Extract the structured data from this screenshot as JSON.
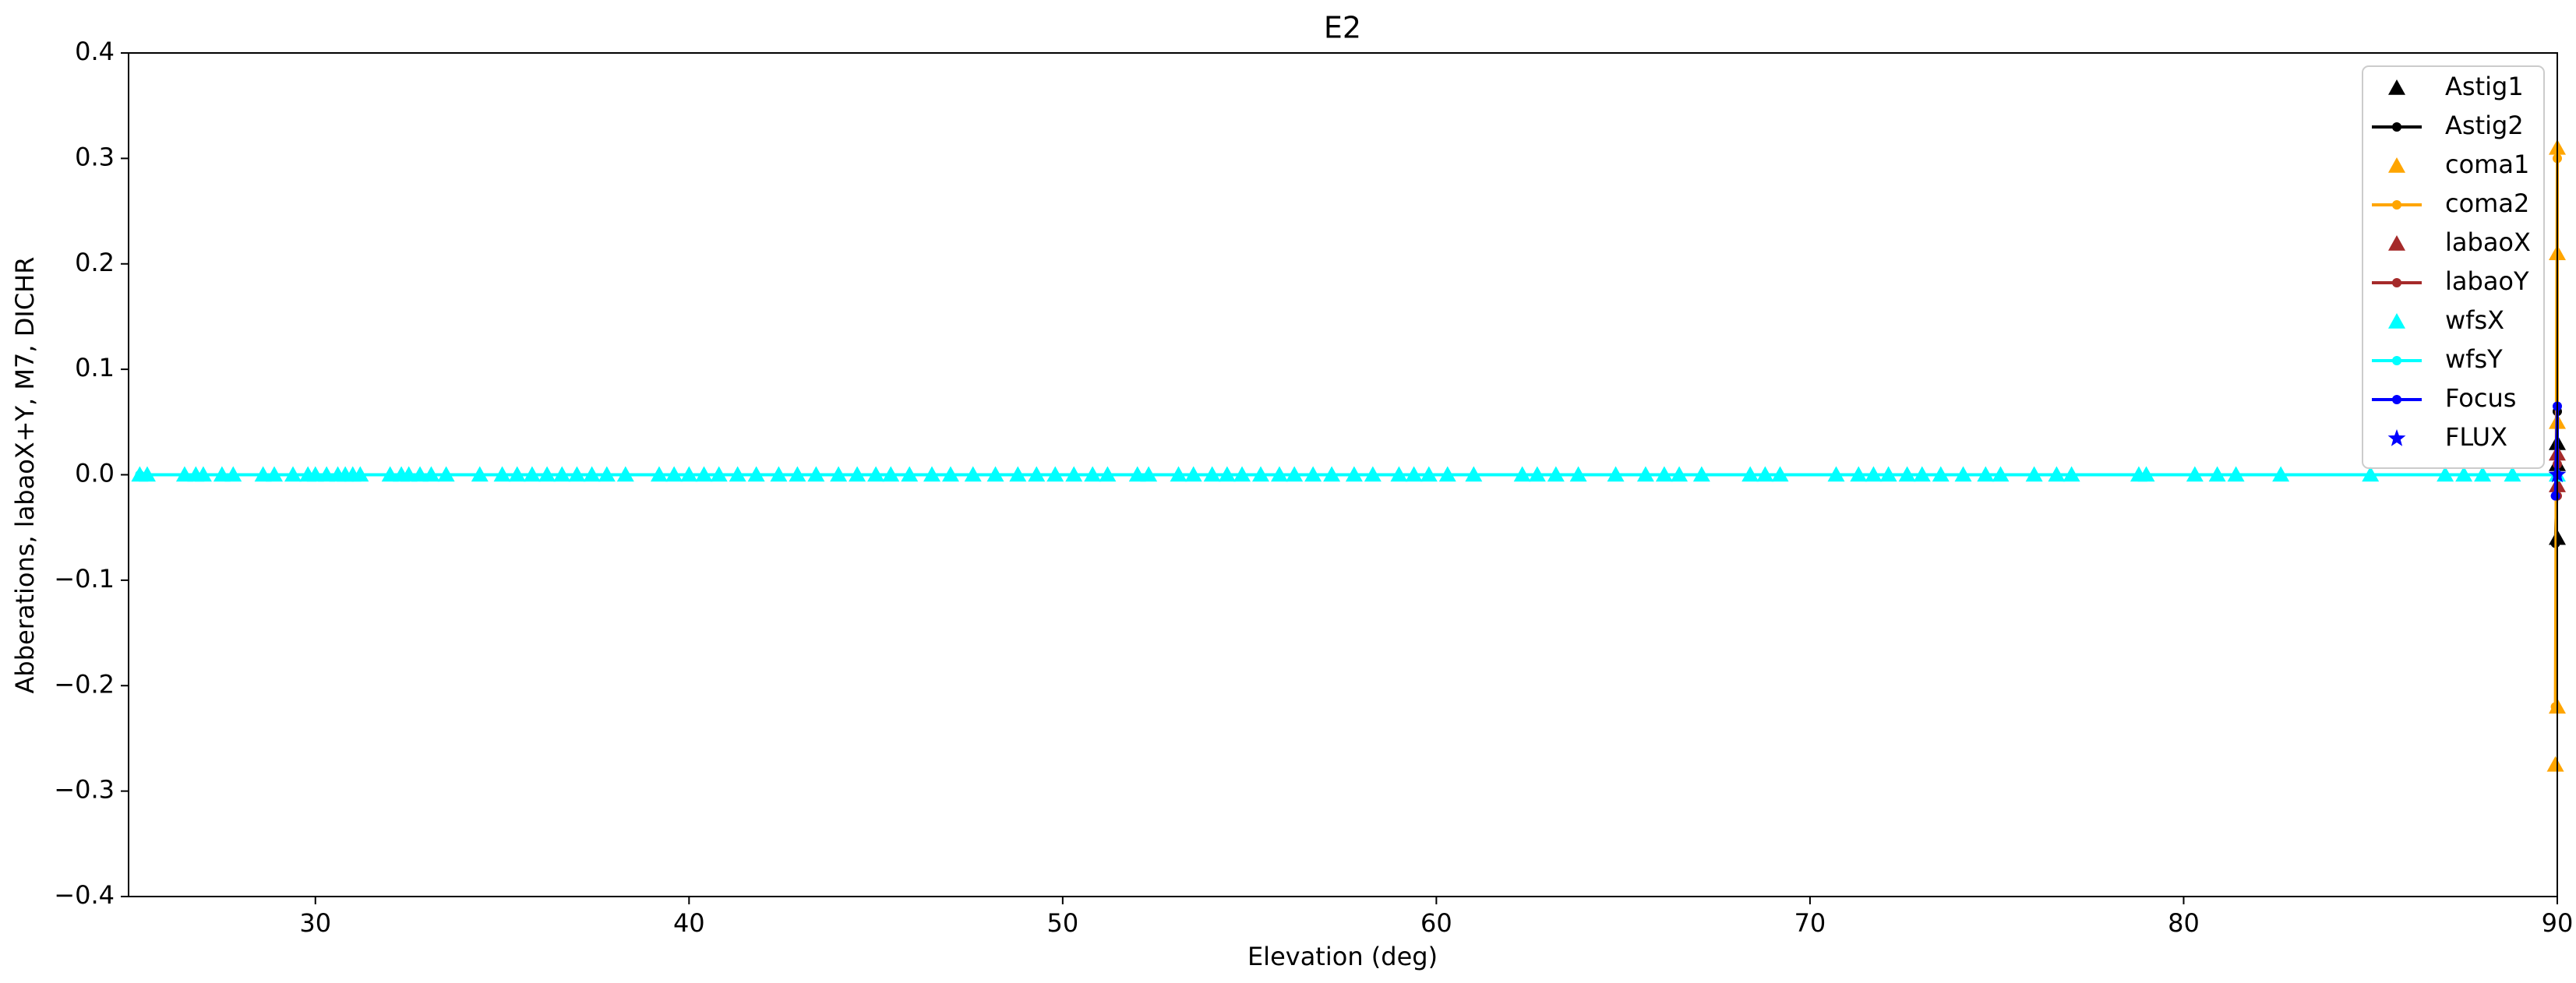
{
  "chart_data": {
    "type": "scatter",
    "title": "E2",
    "xlabel": "Elevation (deg)",
    "ylabel": "Abberations, labaoX+Y, M7, DICHR",
    "xlim": [
      25,
      90
    ],
    "ylim": [
      -0.4,
      0.4
    ],
    "xticks": [
      30,
      40,
      50,
      60,
      70,
      80,
      90
    ],
    "yticks": [
      {
        "value": -0.4,
        "label": "−0.4"
      },
      {
        "value": -0.3,
        "label": "−0.3"
      },
      {
        "value": -0.2,
        "label": "−0.2"
      },
      {
        "value": -0.1,
        "label": "−0.1"
      },
      {
        "value": 0.0,
        "label": "0.0"
      },
      {
        "value": 0.1,
        "label": "0.1"
      },
      {
        "value": 0.2,
        "label": "0.2"
      },
      {
        "value": 0.3,
        "label": "0.3"
      },
      {
        "value": 0.4,
        "label": "0.4"
      }
    ],
    "legend": "upper right",
    "series": [
      {
        "name": "Astig1",
        "color": "#000000",
        "marker": "triangle",
        "line": false,
        "x": [
          90,
          90,
          90
        ],
        "values": [
          -0.06,
          0.01,
          0.03
        ]
      },
      {
        "name": "Astig2",
        "color": "#000000",
        "marker": "dot",
        "line": true,
        "x": [
          89.95,
          90,
          90
        ],
        "values": [
          -0.065,
          0.0,
          0.06
        ]
      },
      {
        "name": "coma1",
        "color": "#ffa500",
        "marker": "triangle",
        "line": false,
        "x": [
          89.95,
          90,
          90,
          90,
          90
        ],
        "values": [
          -0.275,
          -0.22,
          0.21,
          0.31,
          0.05
        ]
      },
      {
        "name": "coma2",
        "color": "#ffa500",
        "marker": "dot",
        "line": true,
        "x": [
          89.95,
          90,
          90
        ],
        "values": [
          -0.22,
          0.3,
          0.0
        ]
      },
      {
        "name": "labaoX",
        "color": "#a52a2a",
        "marker": "triangle",
        "line": false,
        "x": [
          90,
          90
        ],
        "values": [
          0.02,
          -0.01
        ]
      },
      {
        "name": "labaoY",
        "color": "#a52a2a",
        "marker": "dot",
        "line": true,
        "x": [
          90,
          90
        ],
        "values": [
          0.01,
          -0.02
        ]
      },
      {
        "name": "wfsX",
        "color": "#00ffff",
        "marker": "triangle",
        "line": false,
        "x": [
          25.3,
          25.5,
          26.5,
          26.8,
          27.0,
          27.5,
          27.8,
          28.6,
          28.9,
          29.4,
          29.8,
          30.0,
          30.3,
          30.6,
          30.8,
          31.0,
          31.2,
          32.0,
          32.3,
          32.5,
          32.8,
          33.1,
          33.5,
          34.4,
          35.0,
          35.4,
          35.8,
          36.2,
          36.6,
          37.0,
          37.4,
          37.8,
          38.3,
          39.2,
          39.6,
          40.0,
          40.4,
          40.8,
          41.3,
          41.8,
          42.4,
          42.9,
          43.4,
          44.0,
          44.5,
          45.0,
          45.4,
          45.9,
          46.5,
          47.0,
          47.6,
          48.2,
          48.8,
          49.3,
          49.8,
          50.3,
          50.8,
          51.2,
          52.0,
          52.3,
          53.1,
          53.5,
          54.0,
          54.4,
          54.8,
          55.3,
          55.8,
          56.2,
          56.7,
          57.2,
          57.8,
          58.3,
          59.0,
          59.4,
          59.8,
          60.3,
          61.0,
          62.3,
          62.7,
          63.2,
          63.8,
          64.8,
          65.6,
          66.1,
          66.5,
          67.1,
          68.4,
          68.8,
          69.2,
          70.7,
          71.3,
          71.7,
          72.1,
          72.6,
          73.0,
          73.5,
          74.1,
          74.7,
          75.1,
          76.0,
          76.6,
          77.0,
          78.8,
          79.0,
          80.3,
          80.9,
          81.4,
          82.6,
          85.0,
          87.0,
          87.5,
          88.0,
          88.8,
          90.0
        ],
        "values": [
          0,
          0,
          0,
          0,
          0,
          0,
          0,
          0,
          0,
          0,
          0,
          0,
          0,
          0,
          0,
          0,
          0,
          0,
          0,
          0,
          0,
          0,
          0,
          0,
          0,
          0,
          0,
          0,
          0,
          0,
          0,
          0,
          0,
          0,
          0,
          0,
          0,
          0,
          0,
          0,
          0,
          0,
          0,
          0,
          0,
          0,
          0,
          0,
          0,
          0,
          0,
          0,
          0,
          0,
          0,
          0,
          0,
          0,
          0,
          0,
          0,
          0,
          0,
          0,
          0,
          0,
          0,
          0,
          0,
          0,
          0,
          0,
          0,
          0,
          0,
          0,
          0,
          0,
          0,
          0,
          0,
          0,
          0,
          0,
          0,
          0,
          0,
          0,
          0,
          0,
          0,
          0,
          0,
          0,
          0,
          0,
          0,
          0,
          0,
          0,
          0,
          0,
          0,
          0,
          0,
          0,
          0,
          0,
          0,
          0,
          0,
          0,
          0,
          0
        ]
      },
      {
        "name": "wfsY",
        "color": "#00ffff",
        "marker": "dot",
        "line": true,
        "x": [
          25.3,
          90.0
        ],
        "values": [
          0,
          0
        ]
      },
      {
        "name": "Focus",
        "color": "#0000ff",
        "marker": "dot",
        "line": true,
        "x": [
          89.95,
          90,
          90
        ],
        "values": [
          -0.02,
          0.065,
          0.0
        ]
      },
      {
        "name": "FLUX",
        "color": "#0000ff",
        "marker": "star",
        "line": false,
        "x": [
          90
        ],
        "values": [
          0.0
        ]
      }
    ]
  }
}
